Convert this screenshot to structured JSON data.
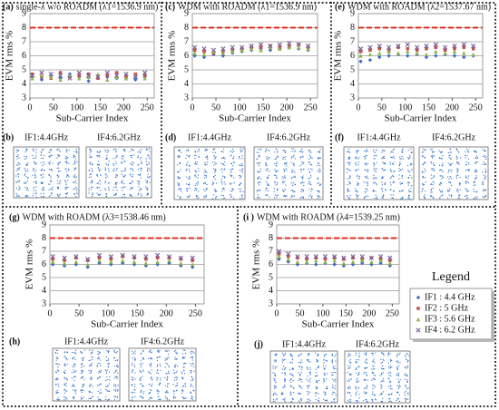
{
  "chart_data": [
    {
      "type": "scatter",
      "panel": "(a)",
      "title": "single-λ w/o ROADM (λ1=1536.9 nm)",
      "y_label": "EVM rms %",
      "x_label": "Sub-Carrier Index",
      "x": [
        5,
        25,
        45,
        65,
        85,
        105,
        125,
        145,
        165,
        185,
        205,
        225,
        245
      ],
      "xlim": [
        0,
        265
      ],
      "xticks": [
        0,
        50,
        100,
        150,
        200,
        250
      ],
      "ylim": [
        3,
        9
      ],
      "yticks": [
        3,
        4,
        5,
        6,
        7,
        8,
        9
      ],
      "grid": true,
      "threshold": 8,
      "threshold_color": "#e03020",
      "series": [
        {
          "name": "IF1 : 4.4 GHz",
          "color": "#3b6cc5",
          "values": [
            4.5,
            4.3,
            4.6,
            4.4,
            4.7,
            4.5,
            4.2,
            4.6,
            4.5,
            4.4,
            4.6,
            4.3,
            4.5
          ]
        },
        {
          "name": "IF2 : 5 GHz",
          "color": "#c0504d",
          "values": [
            4.7,
            4.5,
            4.4,
            4.8,
            4.5,
            4.6,
            4.7,
            4.4,
            4.6,
            4.8,
            4.5,
            4.7,
            4.6
          ]
        },
        {
          "name": "IF3 : 5.6 GHz",
          "color": "#8fb34a",
          "values": [
            4.4,
            4.6,
            4.5,
            4.3,
            4.6,
            4.4,
            4.5,
            4.7,
            4.3,
            4.5,
            4.4,
            4.6,
            4.4
          ]
        },
        {
          "name": "IF4 : 6.2 GHz",
          "color": "#8064a2",
          "values": [
            4.6,
            4.8,
            4.7,
            4.6,
            4.4,
            4.8,
            4.6,
            4.5,
            4.8,
            4.6,
            4.7,
            4.5,
            4.8
          ]
        }
      ]
    },
    {
      "type": "scatter",
      "panel": "(c)",
      "title": "WDM with ROADM (λ1=1536.9 nm)",
      "y_label": "EVM rms %",
      "x_label": "Sub-Carrier Index",
      "x": [
        5,
        25,
        45,
        65,
        85,
        105,
        125,
        145,
        165,
        185,
        205,
        225,
        245
      ],
      "xlim": [
        0,
        265
      ],
      "xticks": [
        0,
        50,
        100,
        150,
        200,
        250
      ],
      "ylim": [
        3,
        9
      ],
      "yticks": [
        3,
        4,
        5,
        6,
        7,
        8,
        9
      ],
      "grid": true,
      "threshold": 8,
      "threshold_color": "#e03020",
      "series": [
        {
          "name": "IF1 : 4.4 GHz",
          "color": "#3b6cc5",
          "values": [
            6.0,
            5.9,
            6.1,
            6.0,
            6.2,
            6.3,
            6.4,
            6.5,
            6.4,
            6.5,
            6.6,
            6.5,
            6.4
          ]
        },
        {
          "name": "IF2 : 5 GHz",
          "color": "#c0504d",
          "values": [
            6.4,
            6.3,
            6.2,
            6.3,
            6.4,
            6.5,
            6.6,
            6.6,
            6.7,
            6.6,
            6.7,
            6.8,
            6.6
          ]
        },
        {
          "name": "IF3 : 5.6 GHz",
          "color": "#8fb34a",
          "values": [
            6.2,
            6.1,
            6.3,
            6.2,
            6.3,
            6.4,
            6.5,
            6.4,
            6.6,
            6.5,
            6.6,
            6.6,
            6.5
          ]
        },
        {
          "name": "IF4 : 6.2 GHz",
          "color": "#8064a2",
          "values": [
            6.6,
            6.5,
            6.4,
            6.5,
            6.6,
            6.6,
            6.7,
            6.8,
            6.7,
            6.8,
            6.9,
            6.8,
            6.7
          ]
        }
      ]
    },
    {
      "type": "scatter",
      "panel": "(e)",
      "title": "WDM with ROADM (λ2=1537.67 nm)",
      "y_label": "EVM rms %",
      "x_label": "Sub-Carrier Index",
      "x": [
        5,
        25,
        45,
        65,
        85,
        105,
        125,
        145,
        165,
        185,
        205,
        225,
        245
      ],
      "xlim": [
        0,
        265
      ],
      "xticks": [
        0,
        50,
        100,
        150,
        200,
        250
      ],
      "ylim": [
        3,
        9
      ],
      "yticks": [
        3,
        4,
        5,
        6,
        7,
        8,
        9
      ],
      "grid": true,
      "threshold": 8,
      "threshold_color": "#e03020",
      "series": [
        {
          "name": "IF1 : 4.4 GHz",
          "color": "#3b6cc5",
          "values": [
            5.6,
            5.7,
            5.9,
            6.0,
            6.1,
            6.0,
            6.1,
            5.9,
            6.0,
            6.1,
            6.0,
            5.9,
            6.0
          ]
        },
        {
          "name": "IF2 : 5 GHz",
          "color": "#c0504d",
          "values": [
            6.3,
            6.4,
            6.5,
            6.4,
            6.6,
            6.5,
            6.4,
            6.5,
            6.6,
            6.4,
            6.5,
            6.6,
            6.5
          ]
        },
        {
          "name": "IF3 : 5.6 GHz",
          "color": "#8fb34a",
          "values": [
            6.0,
            6.1,
            6.2,
            6.3,
            6.2,
            6.3,
            6.2,
            6.1,
            6.3,
            6.2,
            6.3,
            6.2,
            6.1
          ]
        },
        {
          "name": "IF4 : 6.2 GHz",
          "color": "#8064a2",
          "values": [
            6.5,
            6.6,
            6.7,
            6.6,
            6.7,
            6.8,
            6.6,
            6.7,
            6.8,
            6.6,
            6.7,
            6.8,
            6.7
          ]
        }
      ]
    },
    {
      "type": "scatter",
      "panel": "(g)",
      "title": "WDM with ROADM (λ3=1538.46 nm)",
      "y_label": "EVM rms %",
      "x_label": "Sub-Carrier Index",
      "x": [
        5,
        25,
        45,
        65,
        85,
        105,
        125,
        145,
        165,
        185,
        205,
        225,
        245
      ],
      "xlim": [
        0,
        265
      ],
      "xticks": [
        0,
        50,
        100,
        150,
        200,
        250
      ],
      "ylim": [
        3,
        9
      ],
      "yticks": [
        3,
        4,
        5,
        6,
        7,
        8,
        9
      ],
      "grid": true,
      "threshold": 8,
      "threshold_color": "#e03020",
      "series": [
        {
          "name": "IF1 : 4.4 GHz",
          "color": "#3b6cc5",
          "values": [
            6.0,
            5.9,
            6.0,
            5.8,
            6.1,
            6.0,
            6.1,
            6.0,
            5.9,
            6.0,
            6.1,
            5.9,
            5.8
          ]
        },
        {
          "name": "IF2 : 5 GHz",
          "color": "#c0504d",
          "values": [
            6.4,
            6.3,
            6.5,
            6.3,
            6.5,
            6.4,
            6.6,
            6.5,
            6.4,
            6.5,
            6.5,
            6.4,
            6.3
          ]
        },
        {
          "name": "IF3 : 5.6 GHz",
          "color": "#8fb34a",
          "values": [
            6.2,
            6.1,
            6.2,
            6.0,
            6.3,
            6.2,
            6.3,
            6.2,
            6.1,
            6.2,
            6.3,
            6.1,
            6.0
          ]
        },
        {
          "name": "IF4 : 6.2 GHz",
          "color": "#8064a2",
          "values": [
            6.6,
            6.5,
            6.6,
            6.4,
            6.7,
            6.6,
            6.7,
            6.6,
            6.6,
            6.7,
            6.6,
            6.5,
            6.5
          ]
        }
      ]
    },
    {
      "type": "scatter",
      "panel": "(i )",
      "title": "WDM with ROADM (λ4=1539.25 nm)",
      "y_label": "EVM rms %",
      "x_label": "Sub-Carrier Index",
      "x": [
        5,
        25,
        45,
        65,
        85,
        105,
        125,
        145,
        165,
        185,
        205,
        225,
        245
      ],
      "xlim": [
        0,
        265
      ],
      "xticks": [
        0,
        50,
        100,
        150,
        200,
        250
      ],
      "ylim": [
        3,
        9
      ],
      "yticks": [
        3,
        4,
        5,
        6,
        7,
        8,
        9
      ],
      "grid": true,
      "threshold": 8,
      "threshold_color": "#e03020",
      "series": [
        {
          "name": "IF1 : 4.4 GHz",
          "color": "#3b6cc5",
          "values": [
            6.4,
            6.2,
            6.0,
            6.1,
            6.0,
            6.1,
            6.0,
            5.9,
            6.0,
            6.1,
            6.0,
            6.1,
            5.9
          ]
        },
        {
          "name": "IF2 : 5 GHz",
          "color": "#c0504d",
          "values": [
            6.8,
            6.6,
            6.5,
            6.4,
            6.5,
            6.4,
            6.5,
            6.4,
            6.5,
            6.4,
            6.5,
            6.4,
            6.3
          ]
        },
        {
          "name": "IF3 : 5.6 GHz",
          "color": "#8fb34a",
          "values": [
            6.6,
            6.4,
            6.2,
            6.2,
            6.3,
            6.2,
            6.3,
            6.1,
            6.2,
            6.3,
            6.2,
            6.3,
            6.1
          ]
        },
        {
          "name": "IF4 : 6.2 GHz",
          "color": "#8064a2",
          "values": [
            7.0,
            6.8,
            6.6,
            6.6,
            6.6,
            6.6,
            6.6,
            6.5,
            6.6,
            6.6,
            6.5,
            6.6,
            6.5
          ]
        }
      ]
    }
  ],
  "legend_title": "Legend",
  "constellations": [
    {
      "panel": "(b)",
      "labels": [
        "IF1:4.4GHz",
        "IF4:6.2GHz"
      ]
    },
    {
      "panel": "(d)",
      "labels": [
        "IF1:4.4GHz",
        "IF4:6.2GHz"
      ]
    },
    {
      "panel": "(f)",
      "labels": [
        "IF1:4.4GHz",
        "IF4:6.2GHz"
      ]
    },
    {
      "panel": "(h)",
      "labels": [
        "IF1:4.4GHz",
        "IF4:6.2GHz"
      ]
    },
    {
      "panel": "(j)",
      "labels": [
        "IF1:4.4GHz",
        "IF4:6.2GHz"
      ]
    }
  ]
}
